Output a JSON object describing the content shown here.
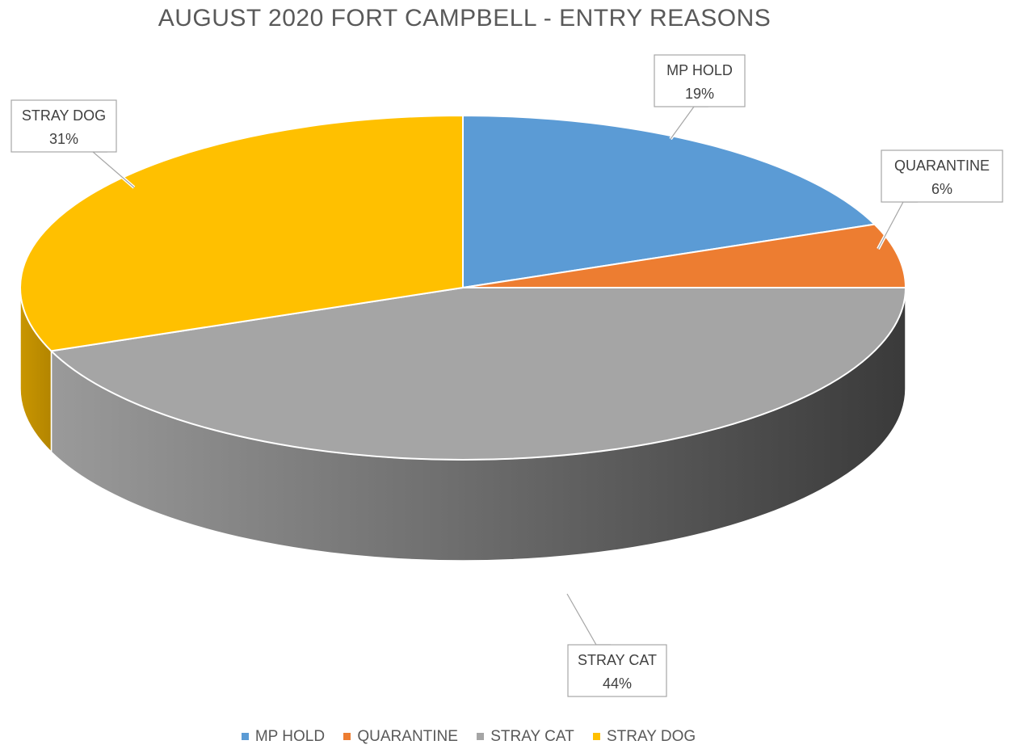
{
  "chart_data": {
    "type": "pie",
    "title": "AUGUST 2020 FORT CAMPBELL - ENTRY REASONS",
    "categories": [
      "MP HOLD",
      "QUARANTINE",
      "STRAY CAT",
      "STRAY DOG"
    ],
    "values": [
      19,
      6,
      44,
      31
    ],
    "value_labels": [
      "19%",
      "6%",
      "44%",
      "31%"
    ],
    "colors": [
      "#5b9bd5",
      "#ed7d31",
      "#a5a5a5",
      "#ffc000"
    ],
    "legend_position": "bottom",
    "three_d": true
  }
}
